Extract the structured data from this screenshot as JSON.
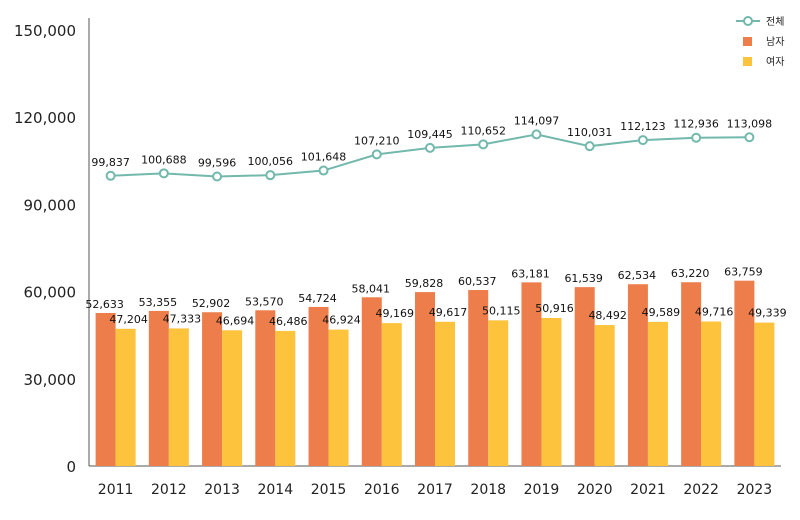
{
  "chart_data": {
    "type": "bar",
    "categories": [
      "2011",
      "2012",
      "2013",
      "2014",
      "2015",
      "2016",
      "2017",
      "2018",
      "2019",
      "2020",
      "2021",
      "2022",
      "2023"
    ],
    "series": [
      {
        "name": "전체",
        "kind": "line",
        "color": "#72b8ac",
        "values": [
          99837,
          100688,
          99596,
          100056,
          101648,
          107210,
          109445,
          110652,
          114097,
          110031,
          112123,
          112936,
          113098
        ]
      },
      {
        "name": "남자",
        "kind": "bar",
        "color": "#ed7d4a",
        "values": [
          52633,
          53355,
          52902,
          53570,
          54724,
          58041,
          59828,
          60537,
          63181,
          61539,
          62534,
          63220,
          63759
        ]
      },
      {
        "name": "여자",
        "kind": "bar",
        "color": "#fdc33c",
        "values": [
          47204,
          47333,
          46694,
          46486,
          46924,
          49169,
          49617,
          50115,
          50916,
          48492,
          49589,
          49716,
          49339
        ]
      }
    ],
    "ylim": [
      0,
      150000
    ],
    "yticks": [
      "0",
      "30,000",
      "60,000",
      "90,000",
      "120,000",
      "150,000"
    ],
    "ytick_values": [
      0,
      30000,
      60000,
      90000,
      120000,
      150000
    ],
    "legend_position": "top-right",
    "grid": false
  }
}
